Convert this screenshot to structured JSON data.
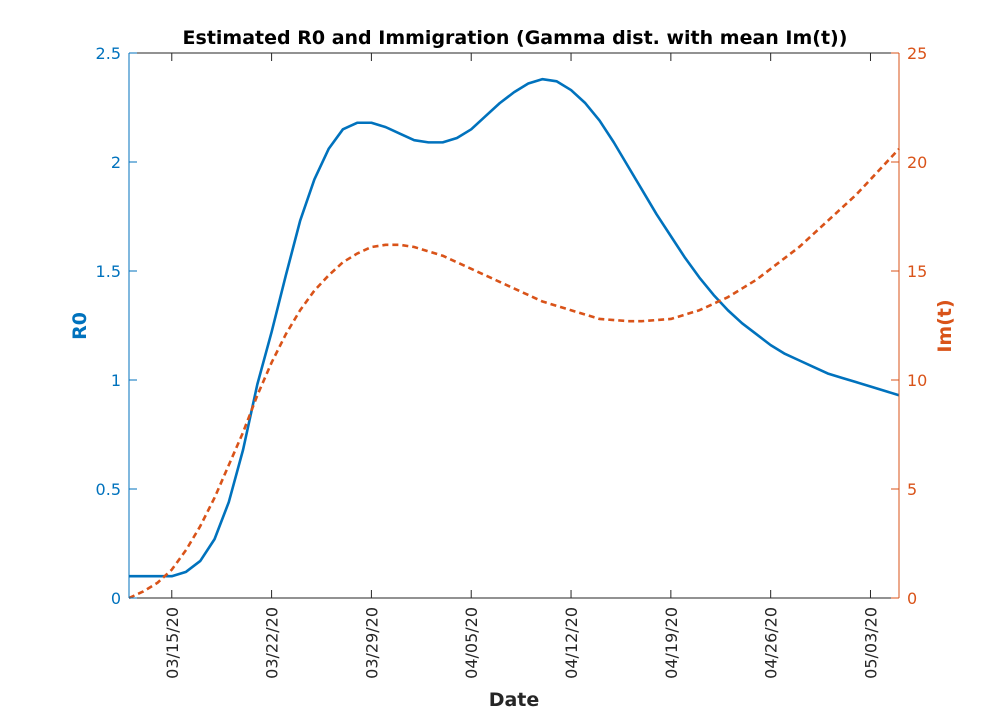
{
  "chart_data": {
    "type": "line",
    "title": "Estimated R0 and Immigration (Gamma dist. with mean Im(t))",
    "xlabel": "Date",
    "ylabel_left": "R0",
    "ylabel_right": "Im(t)",
    "x_ticks": [
      "03/15/20",
      "03/22/20",
      "03/29/20",
      "04/05/20",
      "04/12/20",
      "04/19/20",
      "04/26/20",
      "05/03/20"
    ],
    "x_range_days": [
      0,
      54
    ],
    "x_start_date": "2020-03-12",
    "ylim_left": [
      0,
      2.5
    ],
    "yticks_left": [
      0,
      0.5,
      1,
      1.5,
      2,
      2.5
    ],
    "ylim_right": [
      0,
      25
    ],
    "yticks_right": [
      0,
      5,
      10,
      15,
      20,
      25
    ],
    "grid": false,
    "colors": {
      "left": "#0072BD",
      "right": "#D95319"
    },
    "series": [
      {
        "name": "R0",
        "axis": "left",
        "style": "solid",
        "color": "#0072BD",
        "points": [
          [
            0,
            0.1
          ],
          [
            1,
            0.1
          ],
          [
            2,
            0.1
          ],
          [
            3,
            0.1
          ],
          [
            4,
            0.12
          ],
          [
            5,
            0.17
          ],
          [
            6,
            0.27
          ],
          [
            7,
            0.44
          ],
          [
            8,
            0.68
          ],
          [
            9,
            0.98
          ],
          [
            10,
            1.22
          ],
          [
            11,
            1.48
          ],
          [
            12,
            1.73
          ],
          [
            13,
            1.92
          ],
          [
            14,
            2.06
          ],
          [
            15,
            2.15
          ],
          [
            16,
            2.18
          ],
          [
            17,
            2.18
          ],
          [
            18,
            2.16
          ],
          [
            19,
            2.13
          ],
          [
            20,
            2.1
          ],
          [
            21,
            2.09
          ],
          [
            22,
            2.09
          ],
          [
            23,
            2.11
          ],
          [
            24,
            2.15
          ],
          [
            25,
            2.21
          ],
          [
            26,
            2.27
          ],
          [
            27,
            2.32
          ],
          [
            28,
            2.36
          ],
          [
            29,
            2.38
          ],
          [
            30,
            2.37
          ],
          [
            31,
            2.33
          ],
          [
            32,
            2.27
          ],
          [
            33,
            2.19
          ],
          [
            34,
            2.09
          ],
          [
            35,
            1.98
          ],
          [
            36,
            1.87
          ],
          [
            37,
            1.76
          ],
          [
            38,
            1.66
          ],
          [
            39,
            1.56
          ],
          [
            40,
            1.47
          ],
          [
            41,
            1.39
          ],
          [
            42,
            1.32
          ],
          [
            43,
            1.26
          ],
          [
            44,
            1.21
          ],
          [
            45,
            1.16
          ],
          [
            46,
            1.12
          ],
          [
            47,
            1.09
          ],
          [
            48,
            1.06
          ],
          [
            49,
            1.03
          ],
          [
            50,
            1.01
          ],
          [
            51,
            0.99
          ],
          [
            52,
            0.97
          ],
          [
            53,
            0.95
          ],
          [
            54,
            0.93
          ]
        ]
      },
      {
        "name": "Im(t)",
        "axis": "right",
        "style": "dashed",
        "color": "#D95319",
        "points": [
          [
            0,
            0.0
          ],
          [
            1,
            0.3
          ],
          [
            2,
            0.7
          ],
          [
            3,
            1.3
          ],
          [
            4,
            2.2
          ],
          [
            5,
            3.3
          ],
          [
            6,
            4.6
          ],
          [
            7,
            6.1
          ],
          [
            8,
            7.6
          ],
          [
            9,
            9.3
          ],
          [
            10,
            10.8
          ],
          [
            11,
            12.1
          ],
          [
            12,
            13.2
          ],
          [
            13,
            14.1
          ],
          [
            14,
            14.8
          ],
          [
            15,
            15.4
          ],
          [
            16,
            15.8
          ],
          [
            17,
            16.1
          ],
          [
            18,
            16.2
          ],
          [
            19,
            16.2
          ],
          [
            20,
            16.1
          ],
          [
            21,
            15.9
          ],
          [
            22,
            15.7
          ],
          [
            23,
            15.4
          ],
          [
            24,
            15.1
          ],
          [
            25,
            14.8
          ],
          [
            26,
            14.5
          ],
          [
            27,
            14.2
          ],
          [
            28,
            13.9
          ],
          [
            29,
            13.6
          ],
          [
            30,
            13.4
          ],
          [
            31,
            13.2
          ],
          [
            32,
            13.0
          ],
          [
            33,
            12.8
          ],
          [
            34,
            12.75
          ],
          [
            35,
            12.7
          ],
          [
            36,
            12.7
          ],
          [
            37,
            12.75
          ],
          [
            38,
            12.8
          ],
          [
            39,
            13.0
          ],
          [
            40,
            13.2
          ],
          [
            41,
            13.5
          ],
          [
            42,
            13.8
          ],
          [
            43,
            14.2
          ],
          [
            44,
            14.6
          ],
          [
            45,
            15.1
          ],
          [
            46,
            15.6
          ],
          [
            47,
            16.1
          ],
          [
            48,
            16.7
          ],
          [
            49,
            17.3
          ],
          [
            50,
            17.9
          ],
          [
            51,
            18.5
          ],
          [
            52,
            19.2
          ],
          [
            53,
            19.9
          ],
          [
            54,
            20.6
          ]
        ]
      }
    ]
  }
}
